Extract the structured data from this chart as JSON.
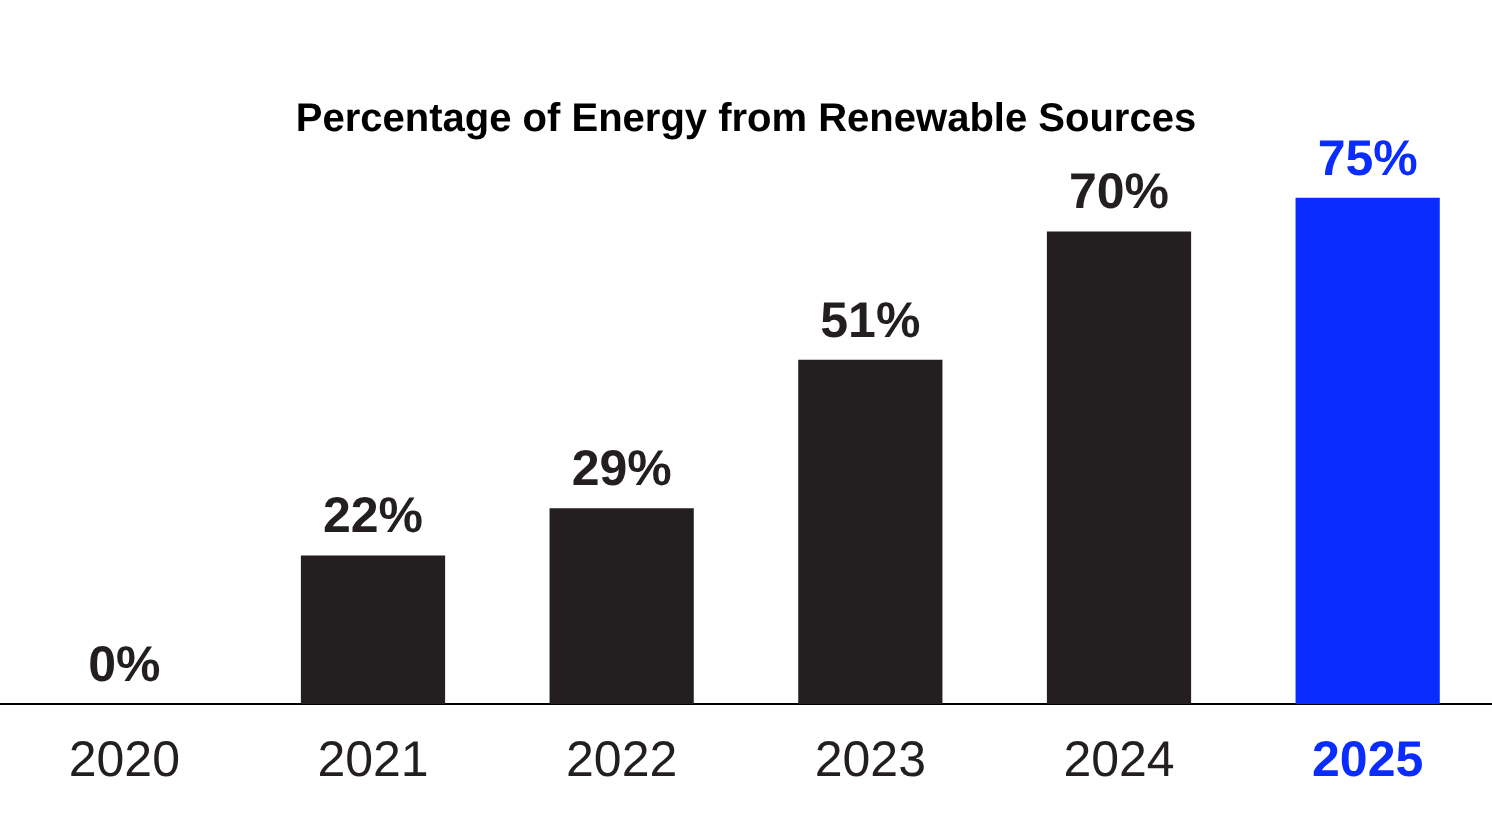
{
  "chart_data": {
    "type": "bar",
    "title": "Percentage of Energy from Renewable Sources",
    "categories": [
      "2020",
      "2021",
      "2022",
      "2023",
      "2024",
      "2025"
    ],
    "values": [
      0,
      22,
      29,
      51,
      70,
      75
    ],
    "value_labels": [
      "0%",
      "22%",
      "29%",
      "51%",
      "70%",
      "75%"
    ],
    "colors": [
      "#231f20",
      "#231f20",
      "#231f20",
      "#231f20",
      "#231f20",
      "#0a2cff"
    ],
    "grid": false,
    "legend": false
  }
}
